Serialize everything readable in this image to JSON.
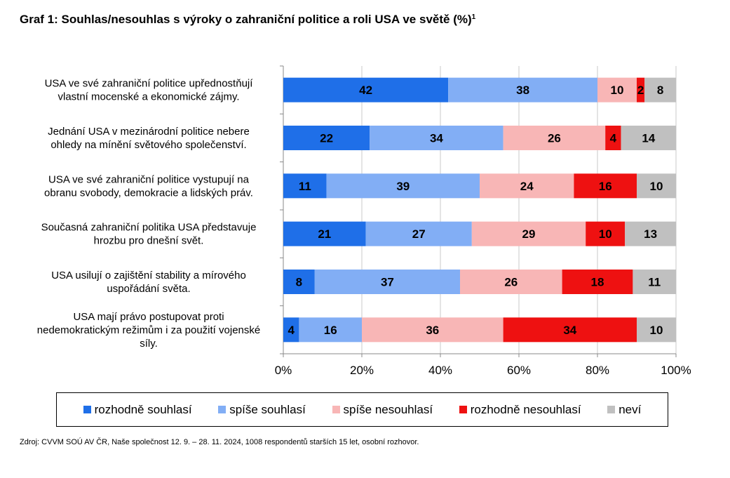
{
  "title": {
    "text": "Graf 1: Souhlas/nesouhlas s výroky o zahraniční politice a roli USA ve světě (%)",
    "superscript": "1"
  },
  "source": "Zdroj: CVVM SOÚ AV ČR, Naše společnost 12. 9. – 28. 11. 2024, 1008 respondentů starších 15 let, osobní rozhovor.",
  "chart_data": {
    "type": "bar",
    "orientation": "horizontal",
    "stacking": "percent",
    "title": "Graf 1: Souhlas/nesouhlas s výroky o zahraniční politice a roli USA ve světě (%)",
    "categories": [
      [
        "USA ve své zahraniční politice upřednostňují",
        "vlastní mocenské a ekonomické zájmy."
      ],
      [
        "Jednání USA v mezinárodní politice nebere",
        "ohledy na mínění světového společenství."
      ],
      [
        "USA ve své zahraniční politice vystupují na",
        "obranu svobody, demokracie a lidských práv."
      ],
      [
        "Současná zahraniční politika USA představuje",
        "hrozbu pro dnešní svět."
      ],
      [
        "USA usilují o zajištění stability a mírového",
        "uspořádání světa."
      ],
      [
        "USA mají právo postupovat proti",
        "nedemokratickým režimům i za použití vojenské",
        "síly."
      ]
    ],
    "series": [
      {
        "name": "rozhodně souhlasí",
        "color": "#1F6FE8",
        "values": [
          42,
          22,
          11,
          21,
          8,
          4
        ]
      },
      {
        "name": "spíše souhlasí",
        "color": "#82AEF5",
        "values": [
          38,
          34,
          39,
          27,
          37,
          16
        ]
      },
      {
        "name": "spíše nesouhlasí",
        "color": "#F8B6B6",
        "values": [
          10,
          26,
          24,
          29,
          26,
          36
        ]
      },
      {
        "name": "rozhodně nesouhlasí",
        "color": "#EE1111",
        "values": [
          2,
          4,
          16,
          10,
          18,
          34
        ]
      },
      {
        "name": "neví",
        "color": "#C0C0C0",
        "values": [
          8,
          14,
          10,
          13,
          11,
          10
        ]
      }
    ],
    "xlim": [
      0,
      100
    ],
    "x_ticks": [
      "0%",
      "20%",
      "40%",
      "60%",
      "80%",
      "100%"
    ],
    "grid": true,
    "legend_position": "bottom"
  }
}
